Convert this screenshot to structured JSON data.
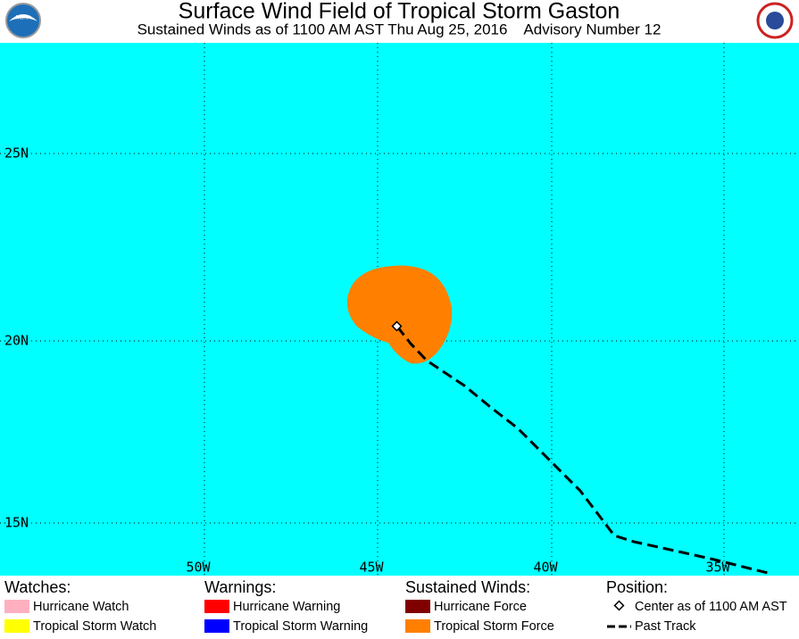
{
  "header": {
    "title": "Surface Wind Field of Tropical Storm Gaston",
    "subtitle": "Sustained Winds as of 1100 AM AST Thu Aug 25, 2016    Advisory Number 12"
  },
  "map": {
    "lat_labels": [
      "25N",
      "20N",
      "15N"
    ],
    "lon_labels": [
      "50W",
      "45W",
      "40W",
      "35W"
    ]
  },
  "legend": {
    "watches": {
      "title": "Watches:",
      "items": [
        "Hurricane Watch",
        "Tropical Storm Watch"
      ]
    },
    "warnings": {
      "title": "Warnings:",
      "items": [
        "Hurricane Warning",
        "Tropical Storm Warning"
      ]
    },
    "winds": {
      "title": "Sustained Winds:",
      "items": [
        "Hurricane Force",
        "Tropical Storm Force"
      ]
    },
    "position": {
      "title": "Position:",
      "items": [
        "Center as of 1100 AM AST",
        "Past Track"
      ]
    }
  }
}
